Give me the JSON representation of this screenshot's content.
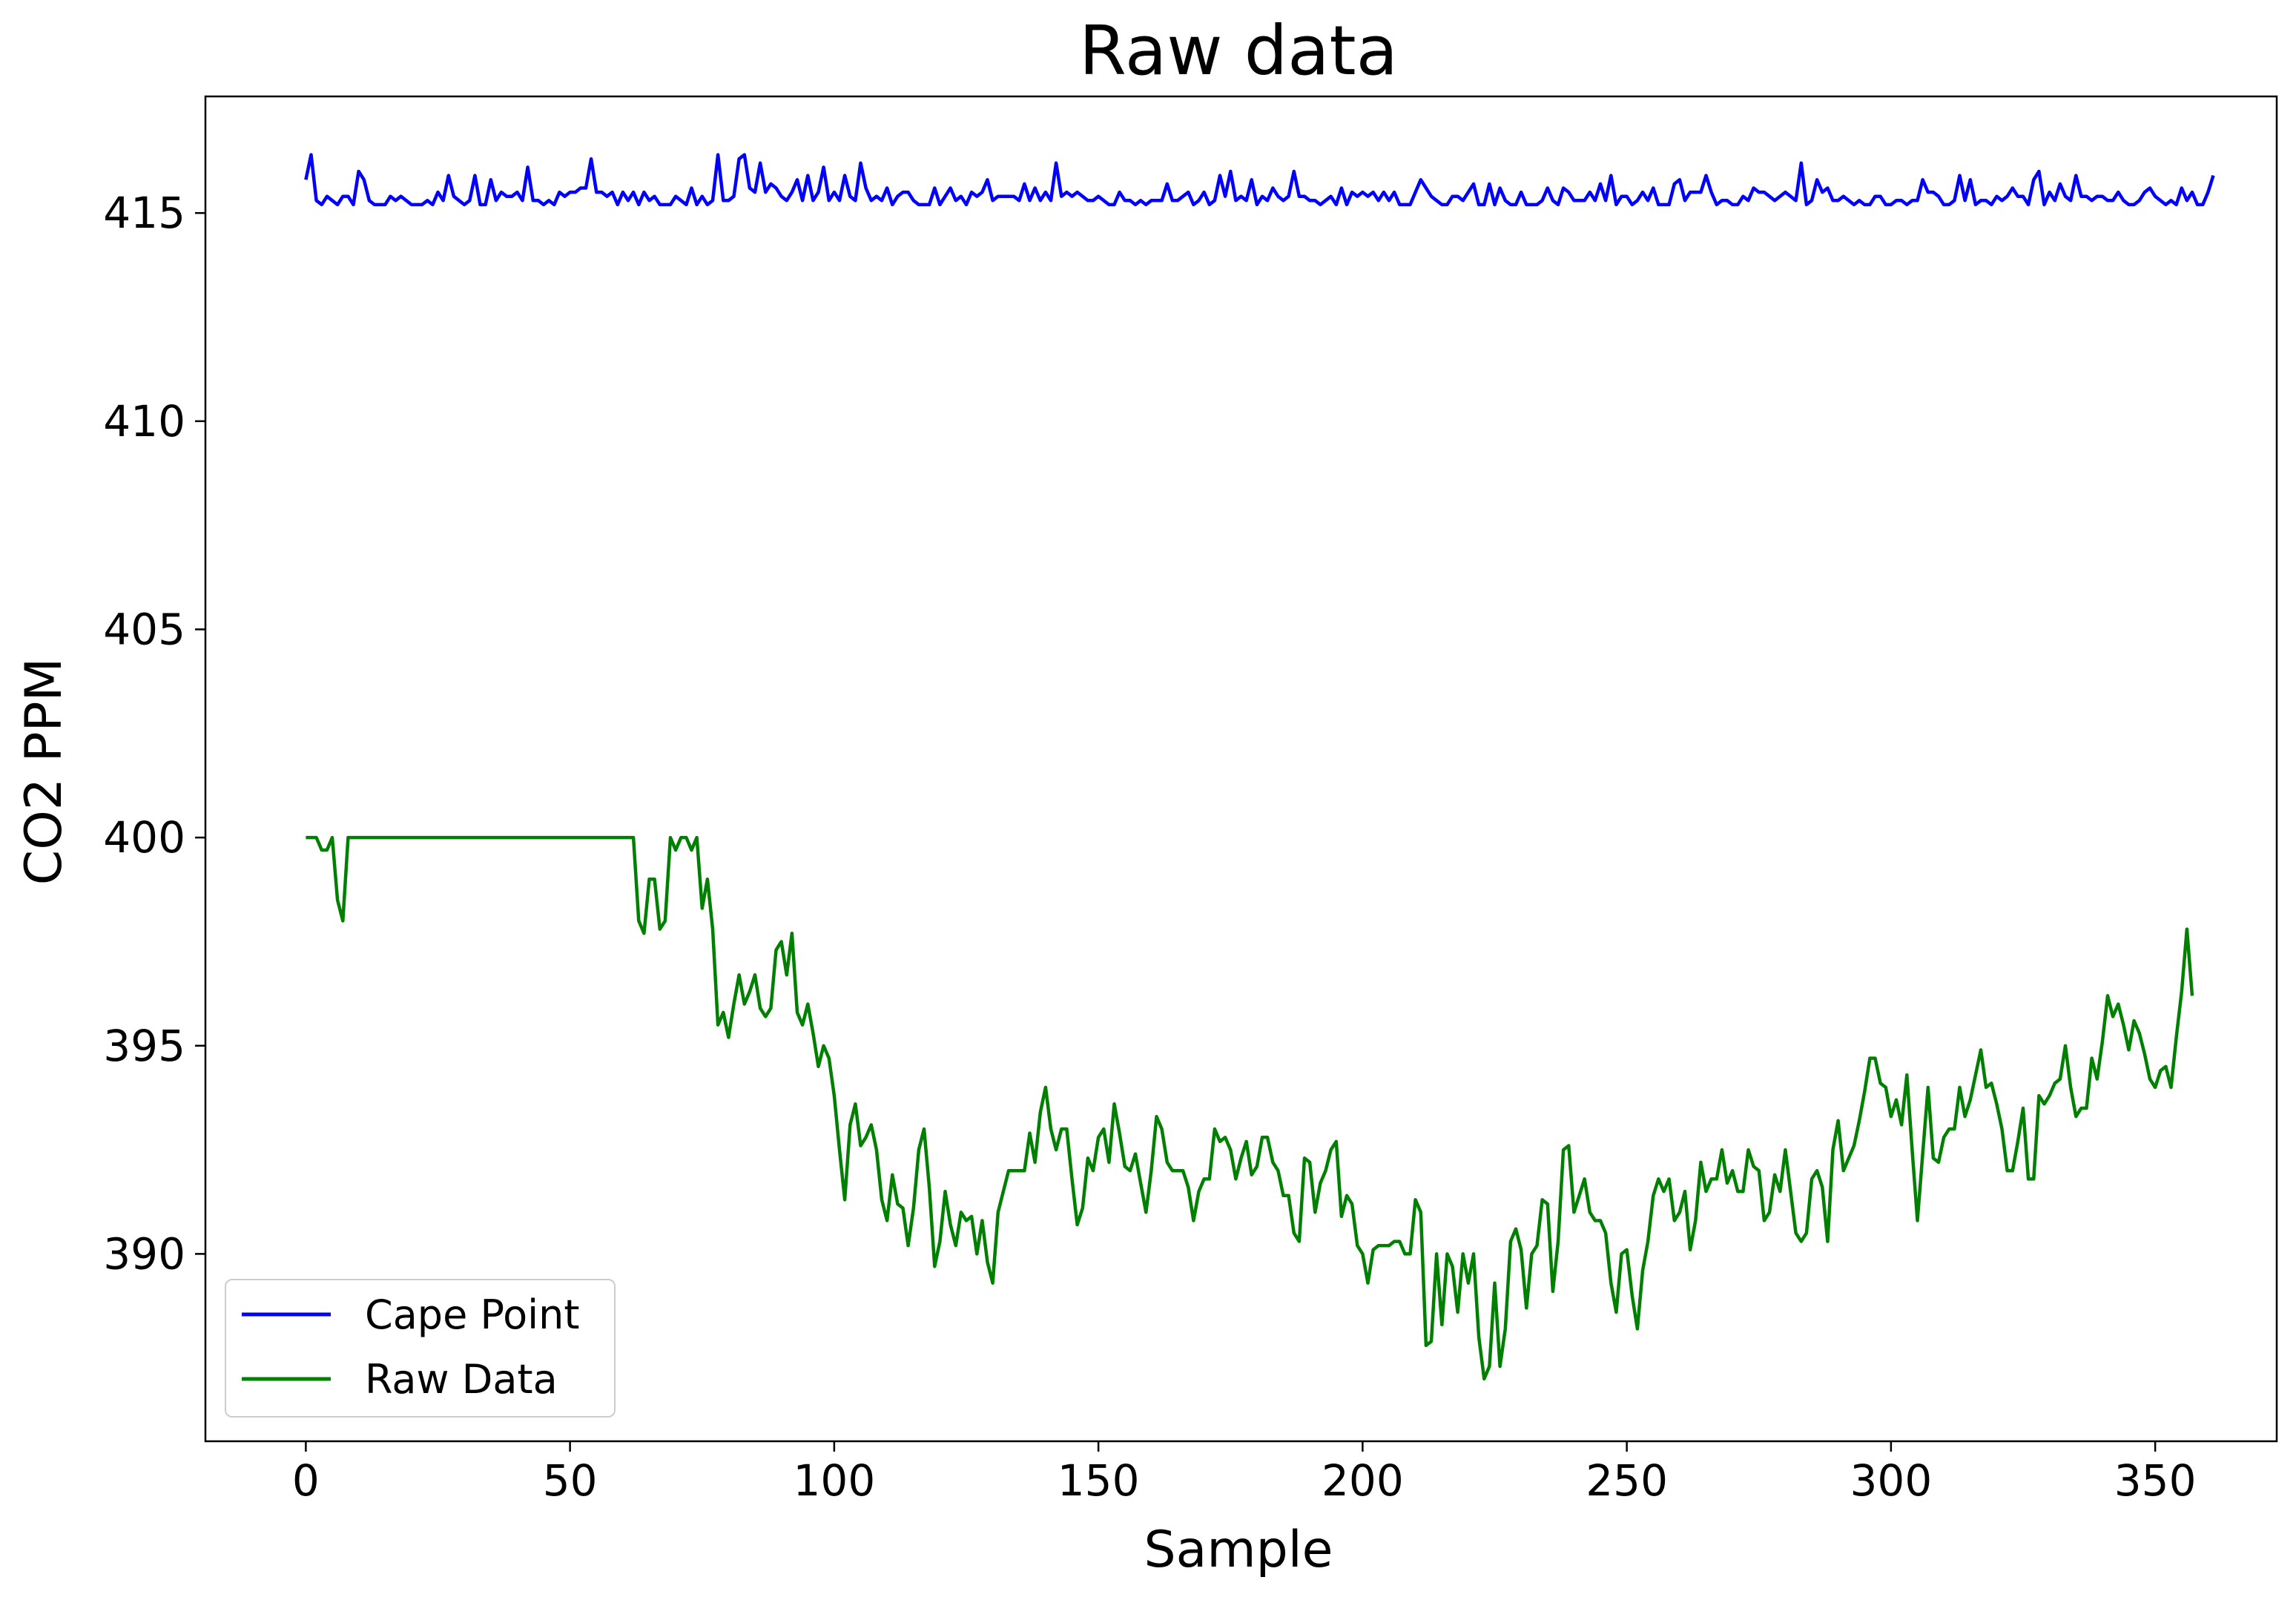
{
  "chart_data": {
    "type": "line",
    "title": "Raw data",
    "xlabel": "Sample",
    "ylabel": "CO2 PPM",
    "xlim": [
      -19,
      373
    ],
    "ylim": [
      385.5,
      417.8
    ],
    "xticks": [
      0,
      50,
      100,
      150,
      200,
      250,
      300,
      350
    ],
    "yticks": [
      390,
      395,
      400,
      405,
      410,
      415
    ],
    "grid": false,
    "legend_position": "lower-left",
    "series": [
      {
        "name": "Cape Point",
        "color": "#0000ff",
        "x_start": 0,
        "values": [
          415.8,
          416.4,
          415.3,
          415.2,
          415.4,
          415.3,
          415.2,
          415.4,
          415.4,
          415.2,
          416.0,
          415.8,
          415.3,
          415.2,
          415.2,
          415.2,
          415.4,
          415.3,
          415.4,
          415.3,
          415.2,
          415.2,
          415.2,
          415.3,
          415.2,
          415.5,
          415.3,
          415.9,
          415.4,
          415.3,
          415.2,
          415.3,
          415.9,
          415.2,
          415.2,
          415.8,
          415.3,
          415.5,
          415.4,
          415.4,
          415.5,
          415.3,
          416.1,
          415.3,
          415.3,
          415.2,
          415.3,
          415.2,
          415.5,
          415.4,
          415.5,
          415.5,
          415.6,
          415.6,
          416.3,
          415.5,
          415.5,
          415.4,
          415.5,
          415.2,
          415.5,
          415.3,
          415.5,
          415.2,
          415.5,
          415.3,
          415.4,
          415.2,
          415.2,
          415.2,
          415.4,
          415.3,
          415.2,
          415.6,
          415.2,
          415.4,
          415.2,
          415.3,
          416.4,
          415.3,
          415.3,
          415.4,
          416.3,
          416.4,
          415.6,
          415.5,
          416.2,
          415.5,
          415.7,
          415.6,
          415.4,
          415.3,
          415.5,
          415.8,
          415.3,
          415.9,
          415.3,
          415.5,
          416.1,
          415.3,
          415.5,
          415.3,
          415.9,
          415.4,
          415.3,
          416.2,
          415.6,
          415.3,
          415.4,
          415.3,
          415.6,
          415.2,
          415.4,
          415.5,
          415.5,
          415.3,
          415.2,
          415.2,
          415.2,
          415.6,
          415.2,
          415.4,
          415.6,
          415.3,
          415.4,
          415.2,
          415.5,
          415.4,
          415.5,
          415.8,
          415.3,
          415.4,
          415.4,
          415.4,
          415.4,
          415.3,
          415.7,
          415.3,
          415.6,
          415.3,
          415.5,
          415.3,
          416.2,
          415.4,
          415.5,
          415.4,
          415.5,
          415.4,
          415.3,
          415.3,
          415.4,
          415.3,
          415.2,
          415.2,
          415.5,
          415.3,
          415.3,
          415.2,
          415.3,
          415.2,
          415.3,
          415.3,
          415.3,
          415.7,
          415.3,
          415.3,
          415.4,
          415.5,
          415.2,
          415.3,
          415.5,
          415.2,
          415.3,
          415.9,
          415.4,
          416.0,
          415.3,
          415.4,
          415.3,
          415.8,
          415.2,
          415.4,
          415.3,
          415.6,
          415.4,
          415.3,
          415.4,
          416.0,
          415.4,
          415.4,
          415.3,
          415.3,
          415.2,
          415.3,
          415.4,
          415.2,
          415.6,
          415.2,
          415.5,
          415.4,
          415.5,
          415.4,
          415.5,
          415.3,
          415.5,
          415.3,
          415.5,
          415.2,
          415.2,
          415.2,
          415.5,
          415.8,
          415.6,
          415.4,
          415.3,
          415.2,
          415.2,
          415.4,
          415.4,
          415.3,
          415.5,
          415.7,
          415.2,
          415.2,
          415.7,
          415.2,
          415.6,
          415.3,
          415.2,
          415.2,
          415.5,
          415.2,
          415.2,
          415.2,
          415.3,
          415.6,
          415.3,
          415.2,
          415.6,
          415.5,
          415.3,
          415.3,
          415.3,
          415.5,
          415.3,
          415.7,
          415.3,
          415.9,
          415.2,
          415.4,
          415.4,
          415.2,
          415.3,
          415.5,
          415.3,
          415.6,
          415.2,
          415.2,
          415.2,
          415.7,
          415.8,
          415.3,
          415.5,
          415.5,
          415.5,
          415.9,
          415.5,
          415.2,
          415.3,
          415.3,
          415.2,
          415.2,
          415.4,
          415.3,
          415.6,
          415.5,
          415.5,
          415.4,
          415.3,
          415.4,
          415.5,
          415.4,
          415.3,
          416.2,
          415.2,
          415.3,
          415.8,
          415.5,
          415.6,
          415.3,
          415.3,
          415.4,
          415.3,
          415.2,
          415.3,
          415.2,
          415.2,
          415.4,
          415.4,
          415.2,
          415.2,
          415.3,
          415.3,
          415.2,
          415.3,
          415.3,
          415.8,
          415.5,
          415.5,
          415.4,
          415.2,
          415.2,
          415.3,
          415.9,
          415.3,
          415.8,
          415.2,
          415.3,
          415.3,
          415.2,
          415.4,
          415.3,
          415.4,
          415.6,
          415.4,
          415.4,
          415.2,
          415.8,
          416.0,
          415.2,
          415.5,
          415.3,
          415.7,
          415.4,
          415.3,
          415.9,
          415.4,
          415.4,
          415.3,
          415.4,
          415.4,
          415.3,
          415.3,
          415.5,
          415.3,
          415.2,
          415.2,
          415.3,
          415.5,
          415.6,
          415.4,
          415.3,
          415.2,
          415.3,
          415.2,
          415.6,
          415.3,
          415.5,
          415.2,
          415.2,
          415.5,
          415.9
        ],
        "label": "Cape Point"
      },
      {
        "name": "Raw Data",
        "color": "#008000",
        "x_start": 0,
        "values": [
          400,
          400,
          400,
          399.7,
          399.7,
          400,
          398.5,
          398,
          400,
          400,
          400,
          400,
          400,
          400,
          400,
          400,
          400,
          400,
          400,
          400,
          400,
          400,
          400,
          400,
          400,
          400,
          400,
          400,
          400,
          400,
          400,
          400,
          400,
          400,
          400,
          400,
          400,
          400,
          400,
          400,
          400,
          400,
          400,
          400,
          400,
          400,
          400,
          400,
          400,
          400,
          400,
          400,
          400,
          400,
          400,
          400,
          400,
          400,
          400,
          400,
          400,
          400,
          400,
          398,
          397.7,
          399,
          399,
          397.8,
          398,
          400,
          399.7,
          400,
          400,
          399.7,
          400,
          398.3,
          399,
          397.8,
          395.5,
          395.8,
          395.2,
          396,
          396.7,
          396,
          396.3,
          396.7,
          395.9,
          395.7,
          395.9,
          397.3,
          397.5,
          396.7,
          397.7,
          395.8,
          395.5,
          396,
          395.3,
          394.5,
          395,
          394.7,
          393.8,
          392.5,
          391.3,
          393.1,
          393.6,
          392.6,
          392.8,
          393.1,
          392.5,
          391.3,
          390.8,
          391.9,
          391.2,
          391.1,
          390.2,
          391.1,
          392.5,
          393,
          391.6,
          389.7,
          390.3,
          391.5,
          390.7,
          390.2,
          391,
          390.8,
          390.9,
          390,
          390.8,
          389.8,
          389.3,
          391,
          391.5,
          392,
          392,
          392,
          392,
          392.9,
          392.2,
          393.4,
          394,
          393,
          392.5,
          393,
          393,
          391.8,
          390.7,
          391.1,
          392.3,
          392,
          392.8,
          393,
          392.2,
          393.6,
          392.9,
          392.1,
          392,
          392.4,
          391.7,
          391,
          392,
          393.3,
          393,
          392.2,
          392,
          392,
          392,
          391.6,
          390.8,
          391.5,
          391.8,
          391.8,
          393,
          392.7,
          392.8,
          392.5,
          391.8,
          392.3,
          392.7,
          391.9,
          392.1,
          392.8,
          392.8,
          392.2,
          392,
          391.4,
          391.4,
          390.5,
          390.3,
          392.3,
          392.2,
          391,
          391.7,
          392,
          392.5,
          392.7,
          390.9,
          391.4,
          391.2,
          390.2,
          390,
          389.3,
          390.1,
          390.2,
          390.2,
          390.2,
          390.3,
          390.3,
          390,
          390,
          391.3,
          391,
          387.8,
          387.9,
          390,
          388.3,
          390,
          389.7,
          388.6,
          390,
          389.3,
          390,
          388,
          387,
          387.3,
          389.3,
          387.3,
          388.2,
          390.3,
          390.6,
          390.1,
          388.7,
          390,
          390.2,
          391.3,
          391.2,
          389.1,
          390.3,
          392.5,
          392.6,
          391,
          391.4,
          391.8,
          391,
          390.8,
          390.8,
          390.5,
          389.3,
          388.6,
          390,
          390.1,
          389,
          388.2,
          389.6,
          390.3,
          391.4,
          391.8,
          391.5,
          391.8,
          390.8,
          391,
          391.5,
          390.1,
          390.8,
          392.2,
          391.5,
          391.8,
          391.8,
          392.5,
          391.7,
          392,
          391.5,
          391.5,
          392.5,
          392.1,
          392,
          390.8,
          391,
          391.9,
          391.5,
          392.5,
          391.5,
          390.5,
          390.3,
          390.5,
          391.8,
          392,
          391.6,
          390.3,
          392.5,
          393.2,
          392,
          392.3,
          392.6,
          393.2,
          393.9,
          394.7,
          394.7,
          394.1,
          394,
          393.3,
          393.7,
          393.1,
          394.3,
          392.5,
          390.8,
          392.4,
          394,
          392.3,
          392.2,
          392.8,
          393,
          393,
          394,
          393.3,
          393.7,
          394.3,
          394.9,
          394,
          394.1,
          393.6,
          393,
          392,
          392,
          392.7,
          393.5,
          391.8,
          391.8,
          393.8,
          393.6,
          393.8,
          394.1,
          394.2,
          395,
          394,
          393.3,
          393.5,
          393.5,
          394.7,
          394.2,
          395.1,
          396.2,
          395.7,
          396,
          395.5,
          394.9,
          395.6,
          395.3,
          394.8,
          394.2,
          394,
          394.4,
          394.5,
          394,
          395.2,
          396.3,
          397.8,
          396.2
        ],
        "label": "Raw Data"
      }
    ]
  }
}
